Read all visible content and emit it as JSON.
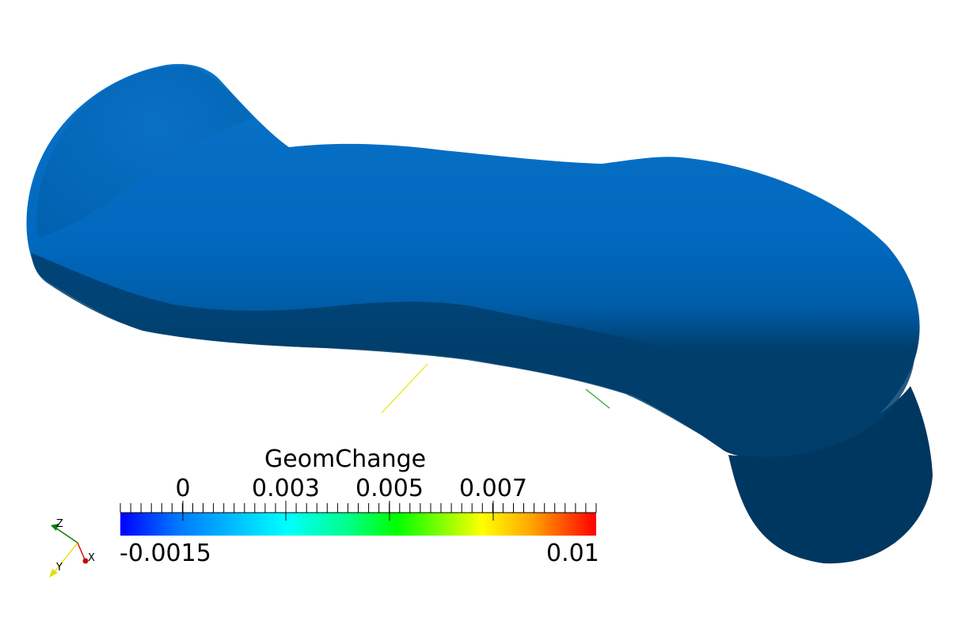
{
  "scalar_bar": {
    "title": "GeomChange",
    "min_label": "-0.0015",
    "max_label": "0.01",
    "range": [
      -0.0015,
      0.01
    ],
    "ticks": [
      "0",
      "0.003",
      "0.005",
      "0.007"
    ],
    "gradient_colors": [
      "#0000ff",
      "#00aaff",
      "#00ffff",
      "#00ff66",
      "#00ff00",
      "#aaff00",
      "#ffff00",
      "#ffaa00",
      "#ff0000"
    ]
  },
  "axes": {
    "z_label": "Z",
    "y_label": "Y",
    "x_label": "X",
    "z_color": "#008000",
    "y_color": "#e0e000",
    "x_color": "#d00000"
  },
  "model": {
    "surface_color": "#0066bb",
    "shadow_color": "#00375e"
  }
}
